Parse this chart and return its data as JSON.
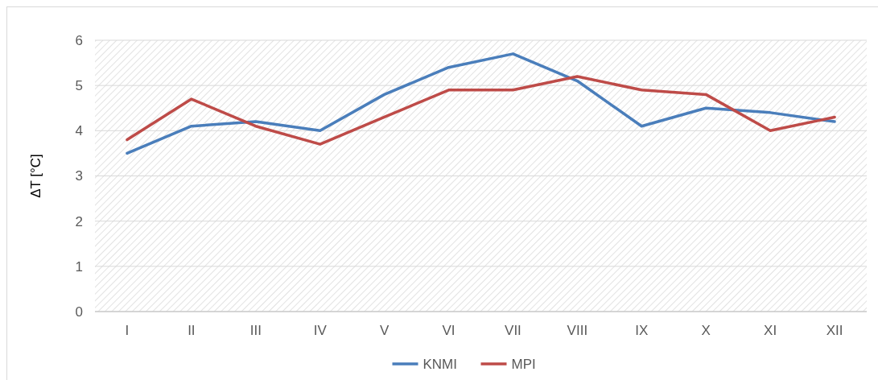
{
  "chart_data": {
    "type": "line",
    "ylabel": "ΔT [°C]",
    "categories": [
      "I",
      "II",
      "III",
      "IV",
      "V",
      "VI",
      "VII",
      "VIII",
      "IX",
      "X",
      "XI",
      "XII"
    ],
    "series": [
      {
        "name": "KNMI",
        "color": "#4a7ebb",
        "values": [
          3.5,
          4.1,
          4.2,
          4.0,
          4.8,
          5.4,
          5.7,
          5.1,
          4.1,
          4.5,
          4.4,
          4.2
        ]
      },
      {
        "name": "MPI",
        "color": "#be4b48",
        "values": [
          3.8,
          4.7,
          4.1,
          3.7,
          4.3,
          4.9,
          4.9,
          5.2,
          4.9,
          4.8,
          4.0,
          4.3
        ]
      }
    ],
    "ylim": [
      0,
      6
    ],
    "yticks": [
      0,
      1,
      2,
      3,
      4,
      5,
      6
    ],
    "grid": "y",
    "legend": "bottom",
    "marker": "none",
    "line_style": "solid"
  }
}
